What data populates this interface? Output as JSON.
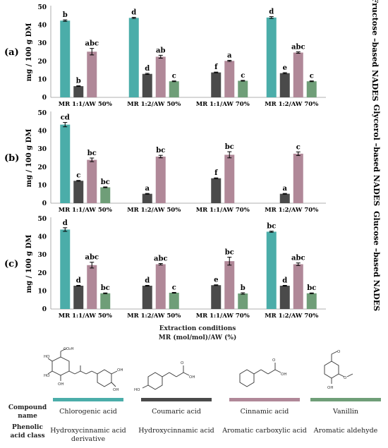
{
  "chart_data": [
    {
      "type": "bar",
      "panel_label": "(a)",
      "side_title": "Fructose –based NADES",
      "ylabel": "mg / 100 g DM",
      "ylim": [
        0,
        50
      ],
      "yticks": [
        0,
        10,
        20,
        30,
        40,
        50
      ],
      "categories": [
        "MR 1:1/AW 50%",
        "MR 1:2/AW 50%",
        "MR 1:1/AW 70%",
        "MR 1:2/AW 70%"
      ],
      "series": [
        {
          "name": "Chlorogenic acid",
          "color": "#4bada9",
          "values": [
            42.5,
            44.0,
            0,
            44.2
          ],
          "errors": [
            0.4,
            0.3,
            0,
            0.5
          ],
          "labels": [
            "b",
            "d",
            "",
            "d"
          ]
        },
        {
          "name": "Coumaric acid",
          "color": "#4a4a4a",
          "values": [
            6.2,
            13.0,
            13.8,
            13.4
          ],
          "errors": [
            0.2,
            0.3,
            0.2,
            0.3
          ],
          "labels": [
            "b",
            "d",
            "f",
            "e"
          ]
        },
        {
          "name": "Cinnamic acid",
          "color": "#b08898",
          "values": [
            25.3,
            22.5,
            20.2,
            24.8
          ],
          "errors": [
            1.8,
            0.8,
            0.3,
            0.4
          ],
          "labels": [
            "abc",
            "ab",
            "a",
            "abc"
          ]
        },
        {
          "name": "Vanillin",
          "color": "#6f9e78",
          "values": [
            0,
            8.9,
            9.2,
            8.9
          ],
          "errors": [
            0,
            0.2,
            0.2,
            0.2
          ],
          "labels": [
            "",
            "c",
            "c",
            "c"
          ]
        }
      ]
    },
    {
      "type": "bar",
      "panel_label": "(b)",
      "side_title": "Glycerol –based NADES",
      "ylabel": "mg / 100 g DM",
      "ylim": [
        0,
        50
      ],
      "yticks": [
        0,
        10,
        20,
        30,
        40,
        50
      ],
      "categories": [
        "MR 1:1/AW 50%",
        "MR 1:2/AW 50%",
        "MR 1:1/AW 70%",
        "MR 1:2/AW 70%"
      ],
      "series": [
        {
          "name": "Chlorogenic acid",
          "color": "#4bada9",
          "values": [
            43.5,
            0,
            0,
            0
          ],
          "errors": [
            1.2,
            0,
            0,
            0
          ],
          "labels": [
            "cd",
            "",
            "",
            ""
          ]
        },
        {
          "name": "Coumaric acid",
          "color": "#4a4a4a",
          "values": [
            12.4,
            5.2,
            13.8,
            5.2
          ],
          "errors": [
            0.2,
            0.2,
            0.2,
            0.2
          ],
          "labels": [
            "c",
            "a",
            "f",
            "a"
          ]
        },
        {
          "name": "Cinnamic acid",
          "color": "#b08898",
          "values": [
            24.0,
            25.8,
            26.8,
            27.4
          ],
          "errors": [
            1.0,
            0.7,
            1.7,
            1.0
          ],
          "labels": [
            "bc",
            "bc",
            "bc",
            "c"
          ]
        },
        {
          "name": "Vanillin",
          "color": "#6f9e78",
          "values": [
            8.8,
            0,
            0,
            0
          ],
          "errors": [
            0.2,
            0,
            0,
            0
          ],
          "labels": [
            "bc",
            "",
            "",
            ""
          ]
        }
      ]
    },
    {
      "type": "bar",
      "panel_label": "(c)",
      "side_title": "Glucose –based NADES",
      "ylabel": "mg / 100 g DM",
      "ylim": [
        0,
        50
      ],
      "yticks": [
        0,
        10,
        20,
        30,
        40,
        50
      ],
      "categories": [
        "MR 1:1/AW 50%",
        "MR 1:2/AW 50%",
        "MR 1:1/AW 70%",
        "MR 1:2/AW 70%"
      ],
      "series": [
        {
          "name": "Chlorogenic acid",
          "color": "#4bada9",
          "values": [
            44.0,
            0,
            0,
            42.8
          ],
          "errors": [
            1.0,
            0,
            0,
            0.3
          ],
          "labels": [
            "d",
            "",
            "",
            "bc"
          ]
        },
        {
          "name": "Coumaric acid",
          "color": "#4a4a4a",
          "values": [
            12.9,
            12.9,
            13.2,
            12.9
          ],
          "errors": [
            0.2,
            0.2,
            0.2,
            0.2
          ],
          "labels": [
            "d",
            "d",
            "e",
            "d"
          ]
        },
        {
          "name": "Cinnamic acid",
          "color": "#b08898",
          "values": [
            24.3,
            24.8,
            26.5,
            24.8
          ],
          "errors": [
            1.6,
            0.4,
            2.2,
            0.7
          ],
          "labels": [
            "abc",
            "abc",
            "bc",
            "abc"
          ]
        },
        {
          "name": "Vanillin",
          "color": "#6f9e78",
          "values": [
            8.7,
            9.0,
            8.6,
            8.7
          ],
          "errors": [
            0.2,
            0.2,
            0.4,
            0.2
          ],
          "labels": [
            "bc",
            "c",
            "b",
            "bc"
          ]
        }
      ]
    }
  ],
  "xtitle_line1": "Extraction conditions",
  "xtitle_line2": "MR (mol/mol)/AW (%)",
  "legend": {
    "row_compound": "Compound name",
    "row_class": "Phenolic acid class",
    "compounds": [
      {
        "name": "Chlorogenic acid",
        "class": "Hydroxycinnamic acid derivative",
        "color": "#4bada9",
        "structure": "chlorogenic-acid-structure"
      },
      {
        "name": "Coumaric acid",
        "class": "Hydroxycinnamic acid",
        "color": "#4a4a4a",
        "structure": "coumaric-acid-structure"
      },
      {
        "name": "Cinnamic acid",
        "class": "Aromatic carboxylic acid",
        "color": "#b08898",
        "structure": "cinnamic-acid-structure"
      },
      {
        "name": "Vanillin",
        "class": "Aromatic aldehyde",
        "color": "#6f9e78",
        "structure": "vanillin-structure"
      }
    ]
  }
}
